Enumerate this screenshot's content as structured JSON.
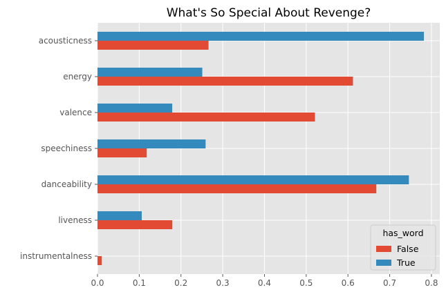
{
  "chart_data": {
    "type": "bar",
    "orientation": "horizontal",
    "title": "What's So Special About Revenge?",
    "xlabel": "",
    "ylabel": "",
    "categories": [
      "instrumentalness",
      "liveness",
      "danceability",
      "speechiness",
      "valence",
      "energy",
      "acousticness"
    ],
    "series": [
      {
        "name": "False",
        "color": "#E24A33",
        "values": [
          0.01,
          0.179,
          0.668,
          0.118,
          0.521,
          0.612,
          0.266
        ]
      },
      {
        "name": "True",
        "color": "#348ABD",
        "values": [
          0.0,
          0.106,
          0.746,
          0.259,
          0.179,
          0.251,
          0.782
        ]
      }
    ],
    "xlim": [
      0,
      0.82
    ],
    "xticks": [
      0.0,
      0.1,
      0.2,
      0.3,
      0.4,
      0.5,
      0.6,
      0.7,
      0.8
    ],
    "xtick_labels": [
      "0.0",
      "0.1",
      "0.2",
      "0.3",
      "0.4",
      "0.5",
      "0.6",
      "0.7",
      "0.8"
    ],
    "grid": true,
    "background": "#E5E5E5",
    "legend": {
      "title": "has_word",
      "position": "lower-right"
    }
  }
}
